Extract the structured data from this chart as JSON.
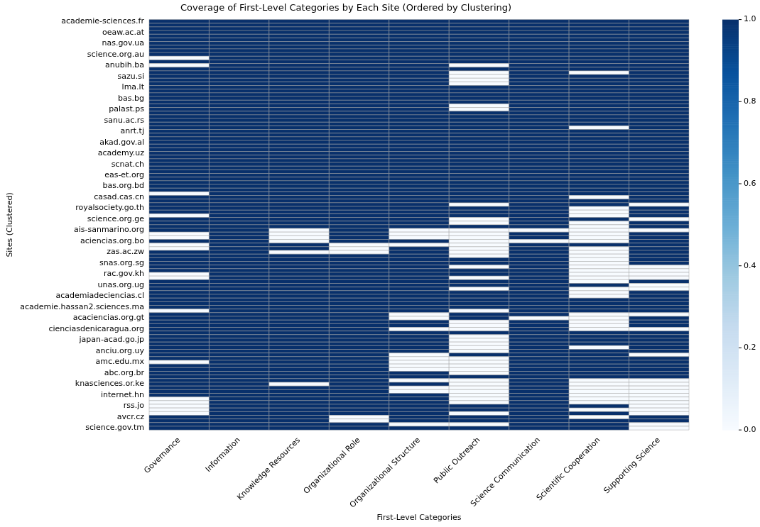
{
  "chart_data": {
    "type": "heatmap",
    "title": "Coverage of First-Level Categories by Each Site (Ordered by Clustering)",
    "xlabel": "First-Level Categories",
    "ylabel": "Sites (Clustered)",
    "categories": [
      "Governance",
      "Information",
      "Knowledge Resources",
      "Organizational Role",
      "Organizational Structure",
      "Public Outreach",
      "Science Communication",
      "Scientific Cooperation",
      "Supporting Science"
    ],
    "y_categories": [
      "academie-sciences.fr",
      null,
      null,
      "oeaw.ac.at",
      null,
      null,
      "nas.gov.ua",
      null,
      null,
      "science.org.au",
      null,
      null,
      "anubih.ba",
      null,
      null,
      "sazu.si",
      null,
      null,
      "lma.lt",
      null,
      null,
      "bas.bg",
      null,
      null,
      "palast.ps",
      null,
      null,
      "sanu.ac.rs",
      null,
      null,
      "anrt.tj",
      null,
      null,
      "akad.gov.al",
      null,
      null,
      "academy.uz",
      null,
      null,
      "scnat.ch",
      null,
      null,
      "eas-et.org",
      null,
      null,
      "bas.org.bd",
      null,
      null,
      "casad.cas.cn",
      null,
      null,
      "royalsociety.go.th",
      null,
      null,
      "science.org.ge",
      null,
      null,
      "ais-sanmarino.org",
      null,
      null,
      "aciencias.org.bo",
      null,
      null,
      "zas.ac.zw",
      null,
      null,
      "snas.org.sg",
      null,
      null,
      "rac.gov.kh",
      null,
      null,
      "unas.org.ug",
      null,
      null,
      "academiadeciencias.cl",
      null,
      null,
      "academie.hassan2.sciences.ma",
      null,
      null,
      "acaciencias.org.gt",
      null,
      null,
      "cienciasdenicaragua.org",
      null,
      null,
      "japan-acad.go.jp",
      null,
      null,
      "anciu.org.uy",
      null,
      null,
      "amc.edu.mx",
      null,
      null,
      "abc.org.br",
      null,
      null,
      "knasciences.or.ke",
      null,
      null,
      "internet.hn",
      null,
      null,
      "rss.jo",
      null,
      null,
      "avcr.cz",
      null,
      null,
      "science.gov.tm"
    ],
    "cells": [
      [
        1,
        1,
        1,
        1,
        1,
        1,
        1,
        1,
        1
      ],
      [
        1,
        1,
        1,
        1,
        1,
        1,
        1,
        1,
        1
      ],
      [
        1,
        1,
        1,
        1,
        1,
        1,
        1,
        1,
        1
      ],
      [
        1,
        1,
        1,
        1,
        1,
        1,
        1,
        1,
        1
      ],
      [
        1,
        1,
        1,
        1,
        1,
        1,
        1,
        1,
        1
      ],
      [
        1,
        1,
        1,
        1,
        1,
        1,
        1,
        1,
        1
      ],
      [
        1,
        1,
        1,
        1,
        1,
        1,
        1,
        1,
        1
      ],
      [
        1,
        1,
        1,
        1,
        1,
        1,
        1,
        1,
        1
      ],
      [
        1,
        1,
        1,
        1,
        1,
        1,
        1,
        1,
        1
      ],
      [
        1,
        1,
        1,
        1,
        1,
        1,
        1,
        1,
        1
      ],
      [
        0,
        1,
        1,
        1,
        1,
        1,
        1,
        1,
        1
      ],
      [
        1,
        1,
        1,
        1,
        1,
        1,
        1,
        1,
        1
      ],
      [
        0,
        1,
        1,
        1,
        1,
        0,
        1,
        1,
        1
      ],
      [
        1,
        1,
        1,
        1,
        1,
        1,
        1,
        1,
        1
      ],
      [
        1,
        1,
        1,
        1,
        1,
        0,
        1,
        0,
        1
      ],
      [
        1,
        1,
        1,
        1,
        1,
        0,
        1,
        1,
        1
      ],
      [
        1,
        1,
        1,
        1,
        1,
        0,
        1,
        1,
        1
      ],
      [
        1,
        1,
        1,
        1,
        1,
        0,
        1,
        1,
        1
      ],
      [
        1,
        1,
        1,
        1,
        1,
        1,
        1,
        1,
        1
      ],
      [
        1,
        1,
        1,
        1,
        1,
        1,
        1,
        1,
        1
      ],
      [
        1,
        1,
        1,
        1,
        1,
        1,
        1,
        1,
        1
      ],
      [
        1,
        1,
        1,
        1,
        1,
        1,
        1,
        1,
        1
      ],
      [
        1,
        1,
        1,
        1,
        1,
        1,
        1,
        1,
        1
      ],
      [
        1,
        1,
        1,
        1,
        1,
        0,
        1,
        1,
        1
      ],
      [
        1,
        1,
        1,
        1,
        1,
        0,
        1,
        1,
        1
      ],
      [
        1,
        1,
        1,
        1,
        1,
        1,
        1,
        1,
        1
      ],
      [
        1,
        1,
        1,
        1,
        1,
        1,
        1,
        1,
        1
      ],
      [
        1,
        1,
        1,
        1,
        1,
        1,
        1,
        1,
        1
      ],
      [
        1,
        1,
        1,
        1,
        1,
        1,
        1,
        1,
        1
      ],
      [
        1,
        1,
        1,
        1,
        1,
        1,
        1,
        0,
        1
      ],
      [
        1,
        1,
        1,
        1,
        1,
        1,
        1,
        1,
        1
      ],
      [
        1,
        1,
        1,
        1,
        1,
        1,
        1,
        1,
        1
      ],
      [
        1,
        1,
        1,
        1,
        1,
        1,
        1,
        1,
        1
      ],
      [
        1,
        1,
        1,
        1,
        1,
        1,
        1,
        1,
        1
      ],
      [
        1,
        1,
        1,
        1,
        1,
        1,
        1,
        1,
        1
      ],
      [
        1,
        1,
        1,
        1,
        1,
        1,
        1,
        1,
        1
      ],
      [
        1,
        1,
        1,
        1,
        1,
        1,
        1,
        1,
        1
      ],
      [
        1,
        1,
        1,
        1,
        1,
        1,
        1,
        1,
        1
      ],
      [
        1,
        1,
        1,
        1,
        1,
        1,
        1,
        1,
        1
      ],
      [
        1,
        1,
        1,
        1,
        1,
        1,
        1,
        1,
        1
      ],
      [
        1,
        1,
        1,
        1,
        1,
        1,
        1,
        1,
        1
      ],
      [
        1,
        1,
        1,
        1,
        1,
        1,
        1,
        1,
        1
      ],
      [
        1,
        1,
        1,
        1,
        1,
        1,
        1,
        1,
        1
      ],
      [
        1,
        1,
        1,
        1,
        1,
        1,
        1,
        1,
        1
      ],
      [
        1,
        1,
        1,
        1,
        1,
        1,
        1,
        1,
        1
      ],
      [
        1,
        1,
        1,
        1,
        1,
        1,
        1,
        1,
        1
      ],
      [
        1,
        1,
        1,
        1,
        1,
        1,
        1,
        1,
        1
      ],
      [
        0,
        1,
        1,
        1,
        1,
        1,
        1,
        1,
        1
      ],
      [
        1,
        1,
        1,
        1,
        1,
        1,
        1,
        0,
        1
      ],
      [
        1,
        1,
        1,
        1,
        1,
        1,
        1,
        1,
        1
      ],
      [
        1,
        1,
        1,
        1,
        1,
        0,
        1,
        1,
        0
      ],
      [
        1,
        1,
        1,
        1,
        1,
        1,
        1,
        0,
        1
      ],
      [
        1,
        1,
        1,
        1,
        1,
        1,
        1,
        0,
        1
      ],
      [
        0,
        1,
        1,
        1,
        1,
        1,
        1,
        0,
        1
      ],
      [
        1,
        1,
        1,
        1,
        1,
        0,
        1,
        1,
        0
      ],
      [
        1,
        1,
        1,
        1,
        1,
        0,
        1,
        0,
        1
      ],
      [
        1,
        1,
        1,
        1,
        1,
        1,
        1,
        0,
        1
      ],
      [
        1,
        1,
        0,
        1,
        0,
        0,
        0,
        0,
        0
      ],
      [
        0,
        1,
        0,
        1,
        0,
        0,
        1,
        0,
        1
      ],
      [
        0,
        1,
        0,
        1,
        0,
        0,
        1,
        0,
        1
      ],
      [
        1,
        1,
        0,
        1,
        1,
        0,
        0,
        0,
        1
      ],
      [
        0,
        1,
        1,
        0,
        0,
        0,
        1,
        1,
        1
      ],
      [
        0,
        1,
        1,
        0,
        1,
        0,
        1,
        0,
        1
      ],
      [
        1,
        1,
        0,
        0,
        1,
        0,
        1,
        0,
        1
      ],
      [
        1,
        1,
        1,
        1,
        1,
        0,
        1,
        0,
        1
      ],
      [
        1,
        1,
        1,
        1,
        1,
        1,
        1,
        0,
        1
      ],
      [
        1,
        1,
        1,
        1,
        1,
        1,
        1,
        0,
        1
      ],
      [
        1,
        1,
        1,
        1,
        1,
        0,
        1,
        0,
        0
      ],
      [
        1,
        1,
        1,
        1,
        1,
        1,
        1,
        0,
        0
      ],
      [
        0,
        1,
        1,
        1,
        1,
        1,
        1,
        0,
        0
      ],
      [
        0,
        1,
        1,
        1,
        1,
        0,
        1,
        0,
        0
      ],
      [
        1,
        1,
        1,
        1,
        1,
        1,
        1,
        0,
        1
      ],
      [
        1,
        1,
        1,
        1,
        1,
        1,
        1,
        1,
        0
      ],
      [
        1,
        1,
        1,
        1,
        1,
        0,
        1,
        0,
        0
      ],
      [
        1,
        1,
        1,
        1,
        1,
        1,
        1,
        0,
        1
      ],
      [
        1,
        1,
        1,
        1,
        1,
        1,
        1,
        0,
        1
      ],
      [
        1,
        1,
        1,
        1,
        1,
        1,
        1,
        1,
        1
      ],
      [
        1,
        1,
        1,
        1,
        1,
        1,
        1,
        1,
        1
      ],
      [
        1,
        1,
        1,
        1,
        1,
        1,
        1,
        1,
        1
      ],
      [
        0,
        1,
        1,
        1,
        1,
        0,
        1,
        1,
        1
      ],
      [
        1,
        1,
        1,
        1,
        0,
        1,
        1,
        0,
        0
      ],
      [
        1,
        1,
        1,
        1,
        0,
        1,
        0,
        0,
        1
      ],
      [
        1,
        1,
        1,
        1,
        1,
        0,
        1,
        0,
        1
      ],
      [
        1,
        1,
        1,
        1,
        1,
        0,
        1,
        0,
        1
      ],
      [
        1,
        1,
        1,
        1,
        0,
        0,
        1,
        0,
        0
      ],
      [
        1,
        1,
        1,
        1,
        1,
        1,
        1,
        1,
        1
      ],
      [
        1,
        1,
        1,
        1,
        1,
        0,
        1,
        1,
        1
      ],
      [
        1,
        1,
        1,
        1,
        1,
        0,
        1,
        1,
        1
      ],
      [
        1,
        1,
        1,
        1,
        1,
        0,
        1,
        1,
        1
      ],
      [
        1,
        1,
        1,
        1,
        1,
        0,
        1,
        0,
        1
      ],
      [
        1,
        1,
        1,
        1,
        1,
        0,
        1,
        1,
        1
      ],
      [
        1,
        1,
        1,
        1,
        0,
        1,
        1,
        1,
        0
      ],
      [
        1,
        1,
        1,
        1,
        0,
        0,
        1,
        1,
        1
      ],
      [
        0,
        1,
        1,
        1,
        0,
        0,
        1,
        1,
        1
      ],
      [
        1,
        1,
        1,
        1,
        0,
        0,
        1,
        1,
        1
      ],
      [
        1,
        1,
        1,
        1,
        0,
        0,
        1,
        1,
        1
      ],
      [
        1,
        1,
        1,
        1,
        1,
        0,
        1,
        1,
        1
      ],
      [
        1,
        1,
        1,
        1,
        1,
        1,
        1,
        1,
        1
      ],
      [
        1,
        1,
        1,
        1,
        0,
        0,
        1,
        0,
        0
      ],
      [
        1,
        1,
        0,
        1,
        1,
        0,
        1,
        0,
        0
      ],
      [
        1,
        1,
        1,
        1,
        0,
        0,
        1,
        0,
        0
      ],
      [
        1,
        1,
        1,
        1,
        0,
        0,
        1,
        0,
        0
      ],
      [
        1,
        1,
        1,
        1,
        1,
        0,
        1,
        0,
        0
      ],
      [
        0,
        1,
        1,
        1,
        1,
        0,
        1,
        0,
        0
      ],
      [
        0,
        1,
        1,
        1,
        1,
        0,
        1,
        0,
        0
      ],
      [
        0,
        1,
        1,
        1,
        1,
        1,
        1,
        1,
        0
      ],
      [
        0,
        1,
        1,
        1,
        1,
        1,
        1,
        0,
        0
      ],
      [
        0,
        1,
        1,
        1,
        1,
        0,
        1,
        1,
        0
      ],
      [
        1,
        1,
        1,
        0,
        1,
        1,
        1,
        0,
        1
      ],
      [
        1,
        1,
        1,
        0,
        1,
        1,
        1,
        1,
        1
      ],
      [
        1,
        1,
        1,
        1,
        0,
        0,
        1,
        1,
        0
      ],
      [
        1,
        1,
        1,
        1,
        1,
        1,
        1,
        1,
        0
      ]
    ],
    "clim": [
      0,
      1
    ],
    "cticks": [
      {
        "value": 0,
        "label": "0.0"
      },
      {
        "value": 0.2,
        "label": "0.2"
      },
      {
        "value": 0.4,
        "label": "0.4"
      },
      {
        "value": 0.6,
        "label": "0.6"
      },
      {
        "value": 0.8,
        "label": "0.8"
      },
      {
        "value": 1,
        "label": "1.0"
      }
    ]
  }
}
